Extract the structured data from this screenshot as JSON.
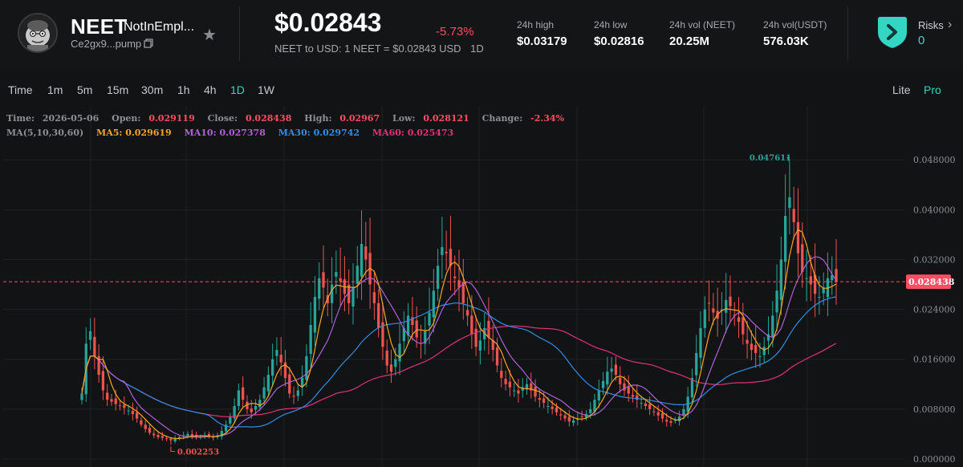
{
  "token": {
    "symbol": "NEET",
    "name": "NotInEmpl...",
    "address": "Ce2gx9...pump",
    "avatar_icon": "pepe-avatar-icon",
    "favorite_icon": "star-icon",
    "copy_icon": "copy-icon"
  },
  "price": {
    "value": "$0.02843",
    "change": "-5.73%",
    "conversion": "NEET to USD: 1 NEET = $0.02843 USD",
    "interval": "1D"
  },
  "stats": [
    {
      "label": "24h high",
      "value": "$0.03179"
    },
    {
      "label": "24h low",
      "value": "$0.02816"
    },
    {
      "label": "24h vol (NEET)",
      "value": "20.25M"
    },
    {
      "label": "24h vol(USDT)",
      "value": "576.03K"
    }
  ],
  "risks": {
    "label": "Risks",
    "value": "0",
    "icon": "shield-arrow-icon"
  },
  "timeframes": [
    "Time",
    "1m",
    "5m",
    "15m",
    "30m",
    "1h",
    "4h",
    "1D",
    "1W"
  ],
  "active_timeframe": "1D",
  "modes": [
    "Lite",
    "Pro"
  ],
  "active_mode": "Pro",
  "ohlc": {
    "time_label": "Time:",
    "time": "2026-05-06",
    "open_label": "Open:",
    "open": "0.029119",
    "close_label": "Close:",
    "close": "0.028438",
    "high_label": "High:",
    "high": "0.02967",
    "low_label": "Low:",
    "low": "0.028121",
    "change_label": "Change:",
    "change": "-2.34%"
  },
  "ma": {
    "title": "MA(5,10,30,60)",
    "ma5": "MA5: 0.029619",
    "ma10": "MA10: 0.027378",
    "ma30": "MA30: 0.029742",
    "ma60": "MA60: 0.025473"
  },
  "colors": {
    "up": "#26a69a",
    "down": "#ef5350",
    "ma5": "#f5a623",
    "ma10": "#b061d6",
    "ma30": "#2f8fe8",
    "ma60": "#e0327a",
    "accent": "#33d6c3",
    "current_price": "#ff4d63"
  },
  "chart_data": {
    "type": "candlestick",
    "y_axis_labels": [
      "0.048000",
      "0.040000",
      "0.032000",
      "0.024000",
      "0.016000",
      "0.008000",
      "0.000000"
    ],
    "ylim": [
      0,
      0.0515
    ],
    "current_price": 0.028438,
    "current_price_label": "0.028438",
    "max_marker": {
      "value": 0.047611,
      "label": "0.047611"
    },
    "min_marker": {
      "value": 0.002253,
      "label": "0.002253"
    },
    "close_series": [
      0.0105,
      0.0185,
      0.0205,
      0.0165,
      0.0135,
      0.011,
      0.0095,
      0.0092,
      0.0088,
      0.0085,
      0.0082,
      0.0078,
      0.0072,
      0.0065,
      0.0055,
      0.0048,
      0.0042,
      0.0038,
      0.0035,
      0.0034,
      0.0032,
      0.003,
      0.0033,
      0.0035,
      0.0038,
      0.004,
      0.0037,
      0.0035,
      0.0036,
      0.0038,
      0.0036,
      0.0034,
      0.0038,
      0.0045,
      0.0055,
      0.0068,
      0.0085,
      0.011,
      0.0095,
      0.008,
      0.0075,
      0.0085,
      0.0095,
      0.0115,
      0.0135,
      0.016,
      0.0175,
      0.0155,
      0.013,
      0.0105,
      0.01,
      0.011,
      0.013,
      0.0165,
      0.0215,
      0.026,
      0.029,
      0.0275,
      0.025,
      0.028,
      0.03,
      0.0285,
      0.0265,
      0.025,
      0.0275,
      0.031,
      0.0345,
      0.032,
      0.028,
      0.025,
      0.021,
      0.018,
      0.015,
      0.014,
      0.016,
      0.0185,
      0.021,
      0.023,
      0.0215,
      0.0195,
      0.0185,
      0.0205,
      0.0235,
      0.027,
      0.031,
      0.034,
      0.033,
      0.031,
      0.029,
      0.0275,
      0.025,
      0.023,
      0.02,
      0.018,
      0.019,
      0.021,
      0.0195,
      0.0175,
      0.015,
      0.013,
      0.012,
      0.0115,
      0.011,
      0.0105,
      0.0115,
      0.012,
      0.011,
      0.01,
      0.0095,
      0.009,
      0.0085,
      0.008,
      0.0075,
      0.007,
      0.0065,
      0.006,
      0.0062,
      0.0065,
      0.0068,
      0.0072,
      0.008,
      0.0095,
      0.011,
      0.0125,
      0.014,
      0.0145,
      0.0135,
      0.012,
      0.011,
      0.0105,
      0.01,
      0.0095,
      0.009,
      0.0085,
      0.008,
      0.0075,
      0.007,
      0.0065,
      0.006,
      0.0058,
      0.0062,
      0.0068,
      0.008,
      0.01,
      0.013,
      0.017,
      0.021,
      0.024,
      0.025,
      0.0235,
      0.0225,
      0.024,
      0.0255,
      0.0245,
      0.023,
      0.022,
      0.02,
      0.0185,
      0.0175,
      0.017,
      0.0165,
      0.018,
      0.02,
      0.023,
      0.027,
      0.032,
      0.039,
      0.042,
      0.038,
      0.033,
      0.03,
      0.029,
      0.028,
      0.0265,
      0.026,
      0.0275,
      0.029,
      0.0295,
      0.0284
    ]
  }
}
